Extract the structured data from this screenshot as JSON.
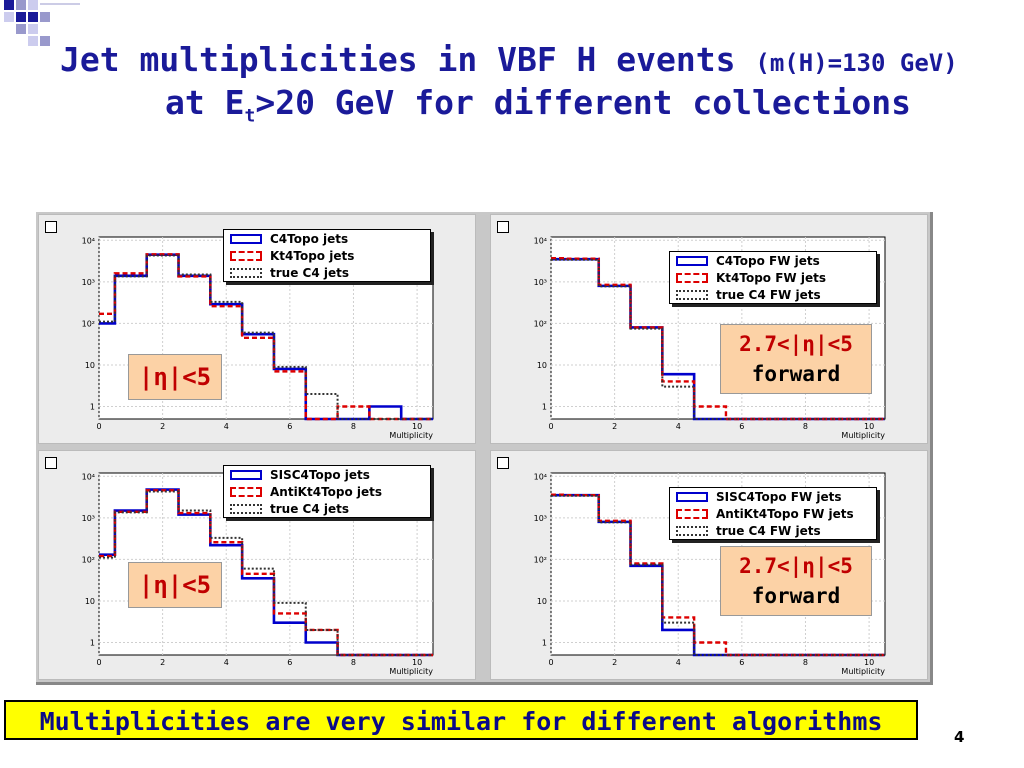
{
  "slide": {
    "title_line1": "Jet multiplicities in VBF H events",
    "title_line1_small": "(m(H)=130 GeV)",
    "title_line2_pre": "at E",
    "title_line2_sub": "t",
    "title_line2_post": ">20 GeV for different collections",
    "summary": "Multiplicities are very similar for different algorithms",
    "page_number": "4",
    "colors": {
      "title": "#1a1a99",
      "summary_bg": "#ffff00",
      "note_bg": "#fcd2a6",
      "note_text": "#c00000"
    }
  },
  "notes": {
    "eta_all": "|η|<5",
    "fwd_range": "2.7<|η|<5",
    "fwd_word": "forward"
  },
  "chart_data": [
    {
      "type": "line",
      "step": true,
      "log_y": true,
      "xlabel": "Multiplicity",
      "xlim": [
        0,
        10.5
      ],
      "ylim": [
        0.5,
        12000
      ],
      "x_ticks": [
        "0",
        "2",
        "4",
        "6",
        "8",
        "10"
      ],
      "y_ticks": [
        "1",
        "10",
        "10²",
        "10³",
        "10⁴"
      ],
      "series": [
        {
          "name": "C4Topo jets",
          "color": "#0000cc",
          "style": "solid",
          "values": [
            100,
            1400,
            4500,
            1400,
            290,
            55,
            8,
            0,
            0,
            1,
            0
          ]
        },
        {
          "name": "Kt4Topo jets",
          "color": "#dd0000",
          "style": "dashed",
          "values": [
            170,
            1600,
            4600,
            1350,
            260,
            45,
            7,
            0,
            1,
            0,
            0
          ]
        },
        {
          "name": "true C4 jets",
          "color": "#333333",
          "style": "dotted",
          "values": [
            110,
            1350,
            4300,
            1500,
            330,
            60,
            9,
            2,
            0,
            0,
            0
          ]
        }
      ]
    },
    {
      "type": "line",
      "step": true,
      "log_y": true,
      "xlabel": "Multiplicity",
      "xlim": [
        0,
        10.5
      ],
      "ylim": [
        0.5,
        12000
      ],
      "x_ticks": [
        "0",
        "2",
        "4",
        "6",
        "8",
        "10"
      ],
      "y_ticks": [
        "1",
        "10",
        "10²",
        "10³",
        "10⁴"
      ],
      "series": [
        {
          "name": "C4Topo FW jets",
          "color": "#0000cc",
          "style": "solid",
          "values": [
            3500,
            3500,
            800,
            80,
            6,
            0,
            0,
            0,
            0,
            0,
            0
          ]
        },
        {
          "name": "Kt4Topo FW jets",
          "color": "#dd0000",
          "style": "dashed",
          "values": [
            3700,
            3600,
            850,
            80,
            4,
            1,
            0,
            0,
            0,
            0,
            0
          ]
        },
        {
          "name": "true C4 FW jets",
          "color": "#333333",
          "style": "dotted",
          "values": [
            3400,
            3400,
            780,
            75,
            3,
            0,
            0,
            0,
            0,
            0,
            0
          ]
        }
      ]
    },
    {
      "type": "line",
      "step": true,
      "log_y": true,
      "xlabel": "Multiplicity",
      "xlim": [
        0,
        10.5
      ],
      "ylim": [
        0.5,
        12000
      ],
      "x_ticks": [
        "0",
        "2",
        "4",
        "6",
        "8",
        "10"
      ],
      "y_ticks": [
        "1",
        "10",
        "10²",
        "10³",
        "10⁴"
      ],
      "series": [
        {
          "name": "SISC4Topo jets",
          "color": "#0000cc",
          "style": "solid",
          "values": [
            130,
            1500,
            4800,
            1200,
            220,
            35,
            3,
            1,
            0,
            0,
            0
          ]
        },
        {
          "name": "AntiKt4Topo jets",
          "color": "#dd0000",
          "style": "dashed",
          "values": [
            120,
            1400,
            4600,
            1300,
            260,
            45,
            5,
            2,
            0,
            0,
            0
          ]
        },
        {
          "name": "true C4 jets",
          "color": "#333333",
          "style": "dotted",
          "values": [
            110,
            1350,
            4300,
            1500,
            330,
            60,
            9,
            2,
            0,
            0,
            0
          ]
        }
      ]
    },
    {
      "type": "line",
      "step": true,
      "log_y": true,
      "xlabel": "Multiplicity",
      "xlim": [
        0,
        10.5
      ],
      "ylim": [
        0.5,
        12000
      ],
      "x_ticks": [
        "0",
        "2",
        "4",
        "6",
        "8",
        "10"
      ],
      "y_ticks": [
        "1",
        "10",
        "10²",
        "10³",
        "10⁴"
      ],
      "series": [
        {
          "name": "SISC4Topo FW jets",
          "color": "#0000cc",
          "style": "solid",
          "values": [
            3500,
            3500,
            800,
            70,
            2,
            0,
            0,
            0,
            0,
            0,
            0
          ]
        },
        {
          "name": "AntiKt4Topo FW jets",
          "color": "#dd0000",
          "style": "dashed",
          "values": [
            3600,
            3500,
            850,
            80,
            4,
            1,
            0,
            0,
            0,
            0,
            0
          ]
        },
        {
          "name": "true C4 FW jets",
          "color": "#333333",
          "style": "dotted",
          "values": [
            3400,
            3400,
            780,
            75,
            3,
            0,
            0,
            0,
            0,
            0,
            0
          ]
        }
      ]
    }
  ]
}
